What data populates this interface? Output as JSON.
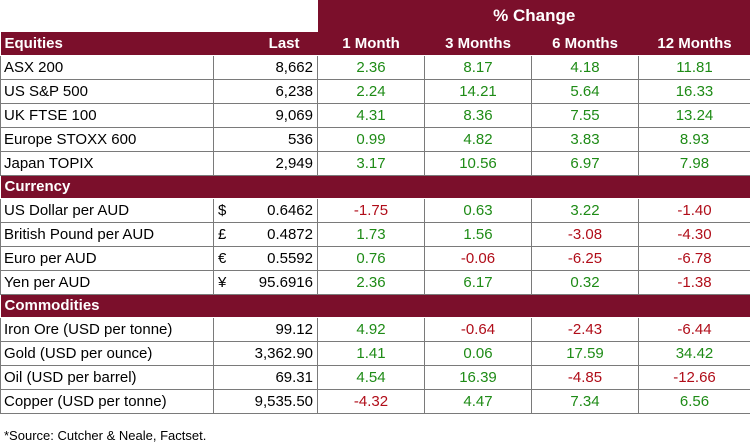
{
  "header": {
    "pct_change": "% Change"
  },
  "sections": [
    {
      "title": "Equities",
      "show_cols": true,
      "last_label": "Last",
      "periods": [
        "1 Month",
        "3 Months",
        "6 Months",
        "12 Months"
      ],
      "rows": [
        {
          "name": "ASX 200",
          "sym": "",
          "last": "8,662",
          "v": [
            "2.36",
            "8.17",
            "4.18",
            "11.81"
          ]
        },
        {
          "name": "US S&P 500",
          "sym": "",
          "last": "6,238",
          "v": [
            "2.24",
            "14.21",
            "5.64",
            "16.33"
          ]
        },
        {
          "name": "UK FTSE 100",
          "sym": "",
          "last": "9,069",
          "v": [
            "4.31",
            "8.36",
            "7.55",
            "13.24"
          ]
        },
        {
          "name": "Europe STOXX 600",
          "sym": "",
          "last": "536",
          "v": [
            "0.99",
            "4.82",
            "3.83",
            "8.93"
          ]
        },
        {
          "name": "Japan TOPIX",
          "sym": "",
          "last": "2,949",
          "v": [
            "3.17",
            "10.56",
            "6.97",
            "7.98"
          ]
        }
      ]
    },
    {
      "title": "Currency",
      "show_cols": false,
      "rows": [
        {
          "name": "US Dollar per AUD",
          "sym": "$",
          "last": "0.6462",
          "v": [
            "-1.75",
            "0.63",
            "3.22",
            "-1.40"
          ]
        },
        {
          "name": "British Pound per AUD",
          "sym": "£",
          "last": "0.4872",
          "v": [
            "1.73",
            "1.56",
            "-3.08",
            "-4.30"
          ]
        },
        {
          "name": "Euro per AUD",
          "sym": "€",
          "last": "0.5592",
          "v": [
            "0.76",
            "-0.06",
            "-6.25",
            "-6.78"
          ]
        },
        {
          "name": "Yen per AUD",
          "sym": "¥",
          "last": "95.6916",
          "v": [
            "2.36",
            "6.17",
            "0.32",
            "-1.38"
          ]
        }
      ]
    },
    {
      "title": "Commodities",
      "show_cols": false,
      "rows": [
        {
          "name": "Iron Ore (USD per tonne)",
          "sym": "",
          "last": "99.12",
          "v": [
            "4.92",
            "-0.64",
            "-2.43",
            "-6.44"
          ]
        },
        {
          "name": "Gold (USD per ounce)",
          "sym": "",
          "last": "3,362.90",
          "v": [
            "1.41",
            "0.06",
            "17.59",
            "34.42"
          ]
        },
        {
          "name": "Oil (USD per barrel)",
          "sym": "",
          "last": "69.31",
          "v": [
            "4.54",
            "16.39",
            "-4.85",
            "-12.66"
          ]
        },
        {
          "name": "Copper (USD per tonne)",
          "sym": "",
          "last": "9,535.50",
          "v": [
            "-4.32",
            "4.47",
            "7.34",
            "6.56"
          ]
        }
      ]
    }
  ],
  "colors": {
    "header_bg": "#7b0f2b",
    "positive": "#1e8b16",
    "negative": "#b00d19"
  },
  "source": "*Source: Cutcher & Neale, Factset."
}
